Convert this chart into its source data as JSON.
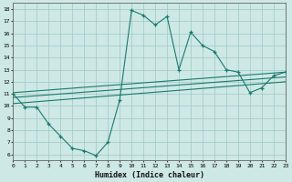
{
  "xlabel": "Humidex (Indice chaleur)",
  "xlim": [
    0,
    23
  ],
  "ylim": [
    5.5,
    18.5
  ],
  "xticks": [
    0,
    1,
    2,
    3,
    4,
    5,
    6,
    7,
    8,
    9,
    10,
    11,
    12,
    13,
    14,
    15,
    16,
    17,
    18,
    19,
    20,
    21,
    22,
    23
  ],
  "yticks": [
    6,
    7,
    8,
    9,
    10,
    11,
    12,
    13,
    14,
    15,
    16,
    17,
    18
  ],
  "bg_color": "#cde8e5",
  "grid_color": "#a0c8c4",
  "line_color": "#1a7a6e",
  "main_x": [
    0,
    1,
    2,
    3,
    4,
    5,
    6,
    7,
    8,
    9,
    10,
    11,
    12,
    13,
    14,
    15,
    16,
    17,
    18,
    19,
    20,
    21,
    22,
    23
  ],
  "main_y": [
    11.0,
    9.9,
    9.9,
    8.5,
    7.5,
    6.5,
    6.3,
    5.9,
    7.0,
    10.5,
    17.9,
    17.5,
    16.7,
    17.4,
    13.0,
    16.1,
    15.0,
    14.5,
    13.0,
    12.8,
    11.1,
    11.5,
    12.5,
    12.8
  ],
  "line1_x": [
    0,
    23
  ],
  "line1_y": [
    11.1,
    12.8
  ],
  "line2_x": [
    0,
    23
  ],
  "line2_y": [
    10.7,
    12.4
  ],
  "line3_x": [
    0,
    23
  ],
  "line3_y": [
    10.2,
    12.0
  ]
}
